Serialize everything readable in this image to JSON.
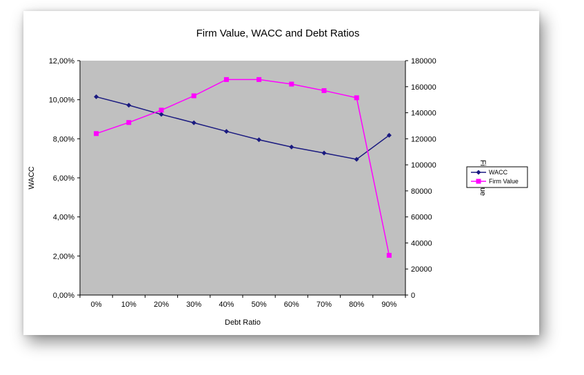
{
  "chart_data": {
    "type": "line",
    "title": "Firm Value, WACC and Debt Ratios",
    "xlabel": "Debt Ratio",
    "ylabel_left": "WACC",
    "ylabel_right": "Firm Value",
    "categories": [
      "0%",
      "10%",
      "20%",
      "30%",
      "40%",
      "50%",
      "60%",
      "70%",
      "80%",
      "90%"
    ],
    "y_left": {
      "min": 0,
      "max": 0.12,
      "ticks": [
        0,
        0.02,
        0.04,
        0.06,
        0.08,
        0.1,
        0.12
      ],
      "tick_labels": [
        "0,00%",
        "2,00%",
        "4,00%",
        "6,00%",
        "8,00%",
        "10,00%",
        "12,00%"
      ]
    },
    "y_right": {
      "min": 0,
      "max": 180000,
      "ticks": [
        0,
        20000,
        40000,
        60000,
        80000,
        100000,
        120000,
        140000,
        160000,
        180000
      ],
      "tick_labels": [
        "0",
        "20000",
        "40000",
        "60000",
        "80000",
        "100000",
        "120000",
        "140000",
        "160000",
        "180000"
      ]
    },
    "series": [
      {
        "name": "WACC",
        "axis": "left",
        "color": "#1a1a80",
        "marker": "diamond",
        "values": [
          0.1015,
          0.0972,
          0.0925,
          0.0882,
          0.0838,
          0.0795,
          0.0758,
          0.0727,
          0.0695,
          0.0818
        ]
      },
      {
        "name": "Firm Value",
        "axis": "right",
        "color": "#ff00ff",
        "marker": "square",
        "values": [
          124000,
          132500,
          142000,
          153000,
          165500,
          165500,
          162000,
          157000,
          151500,
          30500
        ]
      }
    ],
    "plot_background": "#c0c0c0",
    "grid": false,
    "legend_position": "right"
  }
}
